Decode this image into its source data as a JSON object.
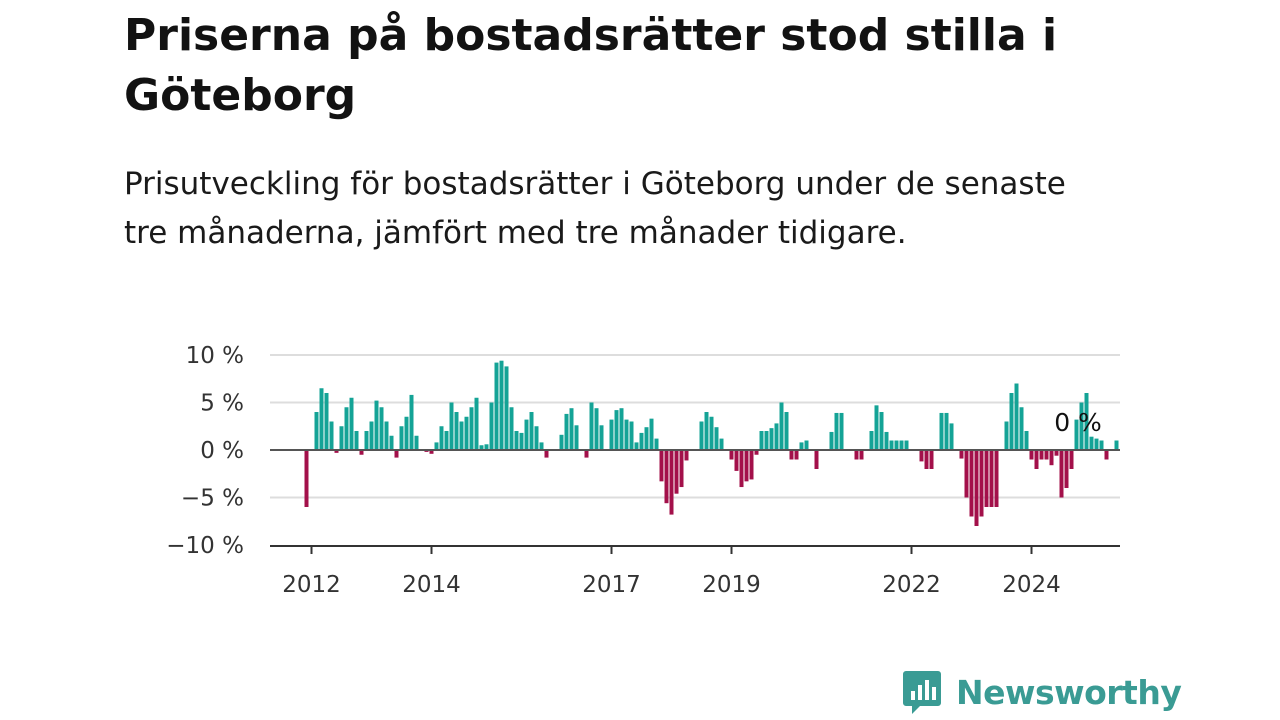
{
  "title": "Priserna på bostadsrätter stod stilla i Göteborg",
  "subtitle": "Prisutveckling för bostadsrätter i Göteborg under de senaste tre månaderna, jämfört med tre månader tidigare.",
  "brand": {
    "name": "Newsworthy"
  },
  "colors": {
    "positive": "#14a396",
    "negative": "#a3104a",
    "zero_line": "#555555",
    "grid": "#dddddd"
  },
  "chart_data": {
    "type": "bar",
    "x_start": "2011-12",
    "frequency": "monthly",
    "ylim": [
      -10,
      10
    ],
    "y_ticks": [
      10,
      5,
      0,
      -5,
      -10
    ],
    "y_tick_labels": [
      "10 %",
      "5 %",
      "0 %",
      "−5 %",
      "−10 %"
    ],
    "x_ticks": [
      {
        "month": "2012-01",
        "label": "2012"
      },
      {
        "month": "2014-01",
        "label": "2014"
      },
      {
        "month": "2017-01",
        "label": "2017"
      },
      {
        "month": "2019-01",
        "label": "2019"
      },
      {
        "month": "2022-01",
        "label": "2022"
      },
      {
        "month": "2024-01",
        "label": "2024"
      }
    ],
    "annotation": "0 %",
    "values": [
      -6,
      0,
      4,
      6.5,
      6,
      3,
      -0.3,
      2.5,
      4.5,
      5.5,
      2,
      -0.5,
      2,
      3,
      5.2,
      4.5,
      3,
      1.5,
      -0.8,
      2.5,
      3.5,
      5.8,
      1.5,
      0,
      -0.2,
      -0.4,
      0.8,
      2.5,
      2,
      5,
      4,
      3,
      3.5,
      4.5,
      5.5,
      0.5,
      0.6,
      5,
      9.2,
      9.4,
      8.8,
      4.5,
      2,
      1.8,
      3.2,
      4,
      2.5,
      0.8,
      -0.8,
      0,
      0,
      1.6,
      3.8,
      4.4,
      2.6,
      0,
      -0.8,
      5,
      4.4,
      2.6,
      0,
      3.2,
      4.2,
      4.4,
      3.2,
      3,
      0.8,
      1.8,
      2.4,
      3.3,
      1.2,
      -3.3,
      -5.6,
      -6.8,
      -4.6,
      -3.9,
      -1.1,
      0,
      0,
      3,
      4,
      3.5,
      2.4,
      1.2,
      0,
      -1,
      -2.2,
      -3.9,
      -3.3,
      -3.1,
      -0.5,
      2,
      2,
      2.3,
      2.8,
      5,
      4,
      -1,
      -1,
      0.8,
      1,
      0,
      -2,
      0,
      0,
      1.9,
      3.9,
      3.9,
      0,
      0,
      -1,
      -1,
      0,
      2,
      4.7,
      4,
      1.9,
      1,
      1,
      1,
      1,
      0,
      0,
      -1.2,
      -2,
      -2,
      0,
      3.9,
      3.9,
      2.8,
      0,
      -0.9,
      -5,
      -7,
      -8,
      -7,
      -6,
      -6,
      -6,
      0,
      3,
      6,
      7,
      4.5,
      2,
      -1,
      -2,
      -1,
      -1,
      -1.6,
      -0.6,
      -5,
      -4,
      -2,
      3.2,
      5,
      6,
      1.4,
      1.2,
      1,
      -1,
      0,
      1
    ]
  }
}
